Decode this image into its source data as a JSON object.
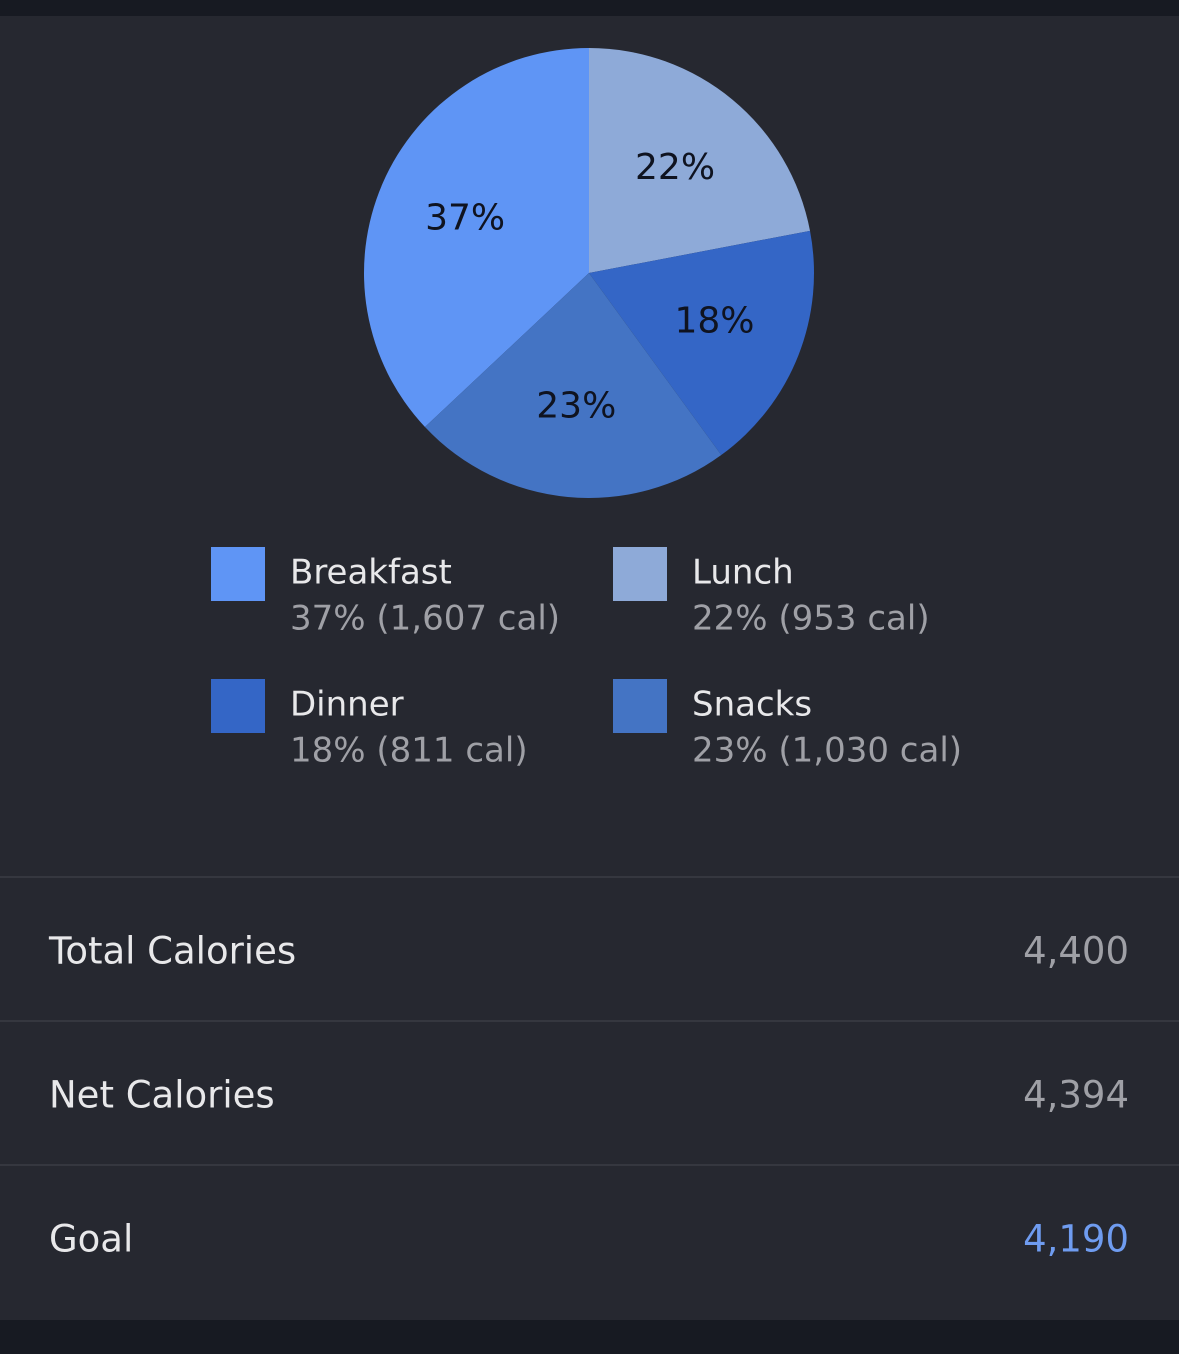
{
  "chart_data": {
    "type": "pie",
    "categories": [
      "Breakfast",
      "Lunch",
      "Dinner",
      "Snacks"
    ],
    "values": [
      37,
      22,
      18,
      23
    ],
    "value_labels": [
      "37%",
      "22%",
      "18%",
      "23%"
    ],
    "colors": [
      "#5f95f5",
      "#8eaad8",
      "#3466c6",
      "#4474c4"
    ],
    "legend_labels": [
      "37% (1,607 cal)",
      "22% (953 cal)",
      "18% (811 cal)",
      "23% (1,030 cal)"
    ]
  },
  "summary": {
    "rows": [
      {
        "label": "Total Calories",
        "value": "4,400"
      },
      {
        "label": "Net Calories",
        "value": "4,394"
      },
      {
        "label": "Goal",
        "value": "4,190"
      }
    ]
  }
}
